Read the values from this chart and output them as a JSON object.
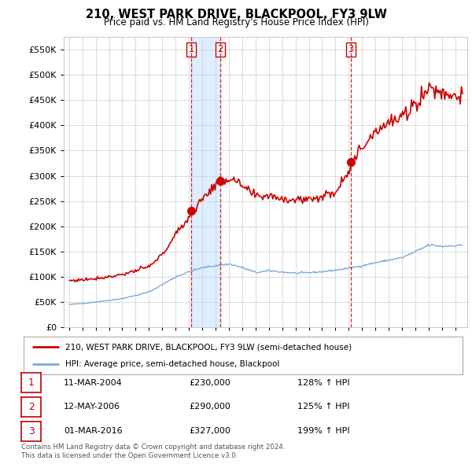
{
  "title": "210, WEST PARK DRIVE, BLACKPOOL, FY3 9LW",
  "subtitle": "Price paid vs. HM Land Registry's House Price Index (HPI)",
  "legend_line1": "210, WEST PARK DRIVE, BLACKPOOL, FY3 9LW (semi-detached house)",
  "legend_line2": "HPI: Average price, semi-detached house, Blackpool",
  "footnote1": "Contains HM Land Registry data © Crown copyright and database right 2024.",
  "footnote2": "This data is licensed under the Open Government Licence v3.0.",
  "transactions": [
    {
      "num": "1",
      "date": "11-MAR-2004",
      "price": "£230,000",
      "hpi": "128% ↑ HPI"
    },
    {
      "num": "2",
      "date": "12-MAY-2006",
      "price": "£290,000",
      "hpi": "125% ↑ HPI"
    },
    {
      "num": "3",
      "date": "01-MAR-2016",
      "price": "£327,000",
      "hpi": "199% ↑ HPI"
    }
  ],
  "sale_dates": [
    2004.19,
    2006.36,
    2016.17
  ],
  "sale_prices": [
    230000,
    290000,
    327000
  ],
  "hpi_color": "#7aaadd",
  "price_color": "#cc0000",
  "vline_color": "#cc0000",
  "shade_color": "#ddeeff",
  "background_color": "#ffffff",
  "grid_color": "#cccccc",
  "ylim": [
    0,
    575000
  ],
  "yticks": [
    0,
    50000,
    100000,
    150000,
    200000,
    250000,
    300000,
    350000,
    400000,
    450000,
    500000,
    550000
  ],
  "xlim_start": 1994.6,
  "xlim_end": 2024.9,
  "hpi_anchors": {
    "1995": 45000,
    "1996": 47000,
    "1997": 50000,
    "1998": 53000,
    "1999": 57000,
    "2000": 63000,
    "2001": 70000,
    "2002": 85000,
    "2003": 100000,
    "2004": 110000,
    "2005": 118000,
    "2006": 122000,
    "2007": 125000,
    "2008": 118000,
    "2009": 108000,
    "2010": 112000,
    "2011": 109000,
    "2012": 107000,
    "2013": 108000,
    "2014": 110000,
    "2015": 113000,
    "2016": 117000,
    "2017": 122000,
    "2018": 128000,
    "2019": 133000,
    "2020": 138000,
    "2021": 150000,
    "2022": 163000,
    "2023": 160000,
    "2024": 162000
  },
  "price_anchors": {
    "1995": 92000,
    "1996": 94000,
    "1997": 97000,
    "1998": 100000,
    "1999": 105000,
    "2000": 112000,
    "2001": 120000,
    "2002": 145000,
    "2003": 185000,
    "2004": 220000,
    "2005": 255000,
    "2006": 285000,
    "2007": 295000,
    "2008": 278000,
    "2009": 258000,
    "2010": 262000,
    "2011": 255000,
    "2012": 252000,
    "2013": 255000,
    "2014": 258000,
    "2015": 270000,
    "2016": 315000,
    "2017": 358000,
    "2018": 392000,
    "2019": 405000,
    "2020": 415000,
    "2021": 445000,
    "2022": 475000,
    "2023": 465000,
    "2024": 460000
  }
}
